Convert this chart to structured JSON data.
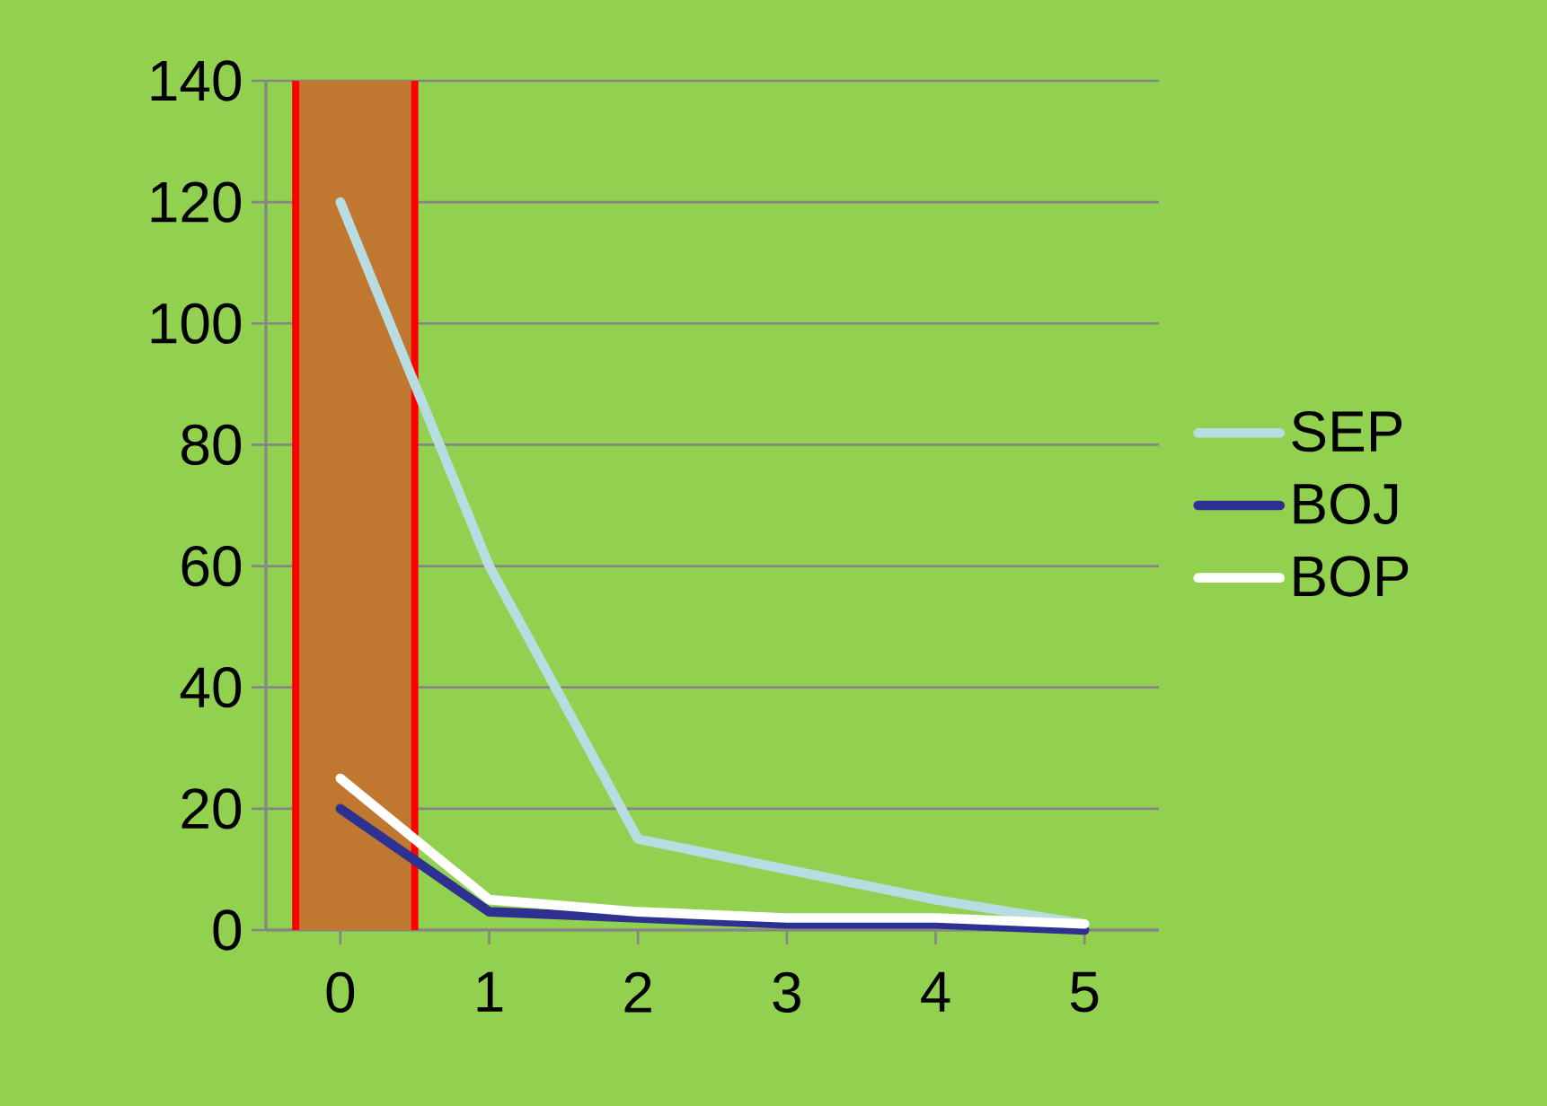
{
  "chart_data": {
    "type": "line",
    "x": [
      0,
      1,
      2,
      3,
      4,
      5
    ],
    "series": [
      {
        "name": "SEP",
        "color": "#b7dde3",
        "values": [
          120,
          60,
          15,
          10,
          5,
          1
        ]
      },
      {
        "name": "BOJ",
        "color": "#2e3192",
        "values": [
          20,
          3,
          2,
          1,
          1,
          0
        ]
      },
      {
        "name": "BOP",
        "color": "#ffffff",
        "values": [
          25,
          5,
          3,
          2,
          2,
          1
        ]
      }
    ],
    "xlim": [
      -0.5,
      5.5
    ],
    "xticks": [
      0,
      1,
      2,
      3,
      4,
      5
    ],
    "ylim": [
      0,
      140
    ],
    "yticks": [
      0,
      20,
      40,
      60,
      80,
      100,
      120,
      140
    ],
    "grid": "y",
    "legend": "right",
    "marker": "none",
    "line_style": "solid",
    "bands": [
      {
        "axis": "x",
        "from": -0.3,
        "to": 0.5,
        "color": "#c07830"
      }
    ],
    "ref_lines": [
      {
        "axis": "x",
        "value": -0.3,
        "color": "#ff0000"
      },
      {
        "axis": "x",
        "value": 0.5,
        "color": "#ff0000"
      }
    ]
  }
}
